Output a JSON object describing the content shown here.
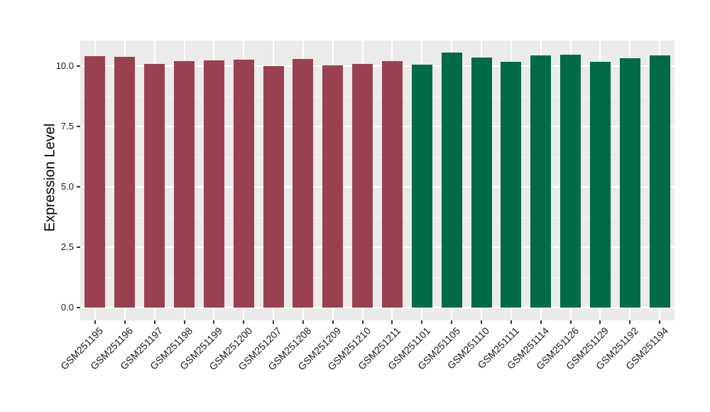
{
  "chart_data": {
    "type": "bar",
    "title": "",
    "xlabel": "",
    "ylabel": "Expression Level",
    "ytick_labels": [
      "0.0",
      "2.5",
      "5.0",
      "7.5",
      "10.0"
    ],
    "ytick_values": [
      0,
      2.5,
      5,
      7.5,
      10
    ],
    "ylim": [
      -0.55,
      11.08
    ],
    "grid": "on",
    "legend": "none",
    "minor_gridline_values": [
      1.25,
      3.75,
      6.25,
      8.75
    ],
    "categories": [
      "GSM251195",
      "GSM251196",
      "GSM251197",
      "GSM251198",
      "GSM251199",
      "GSM251200",
      "GSM251207",
      "GSM251208",
      "GSM251209",
      "GSM251210",
      "GSM251211",
      "GSM251101",
      "GSM251105",
      "GSM251110",
      "GSM251111",
      "GSM251114",
      "GSM251126",
      "GSM251129",
      "GSM251192",
      "GSM251194"
    ],
    "values": [
      10.42,
      10.38,
      10.08,
      10.21,
      10.24,
      10.26,
      10.01,
      10.3,
      10.03,
      10.1,
      10.2,
      10.07,
      10.56,
      10.34,
      10.18,
      10.44,
      10.47,
      10.18,
      10.32,
      10.43
    ],
    "bar_colors": [
      "#9A4151",
      "#9A4151",
      "#9A4151",
      "#9A4151",
      "#9A4151",
      "#9A4151",
      "#9A4151",
      "#9A4151",
      "#9A4151",
      "#9A4151",
      "#9A4151",
      "#016A48",
      "#016A48",
      "#016A48",
      "#016A48",
      "#016A48",
      "#016A48",
      "#016A48",
      "#016A48",
      "#016A48"
    ],
    "palette": {
      "group_red": "#9A4151",
      "group_green": "#016A48"
    },
    "colors": {
      "panel_background": "#EBEBEB",
      "figure_background": "#FFFFFF",
      "gridline": "#FFFFFF",
      "tick_mark": "#333333",
      "tick_text": "#1a1a1a",
      "axis_title_text": "#000000"
    }
  }
}
